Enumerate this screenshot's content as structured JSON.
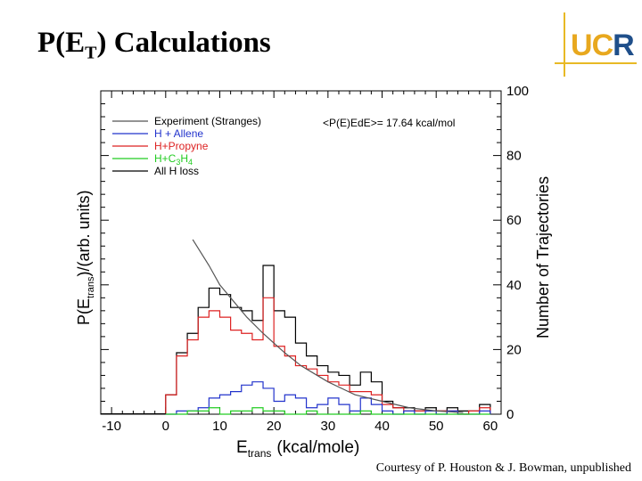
{
  "slide": {
    "title_main": "P(E",
    "title_sub": "T",
    "title_end": ") Calculations",
    "credit": "Courtesy of P. Houston & J. Bowman, unpublished"
  },
  "logo": {
    "u": "U",
    "c": "C",
    "r": "R"
  },
  "colors": {
    "experiment": "#555555",
    "allene": "#2233cc",
    "propyne": "#dd2222",
    "c3h4": "#22cc22",
    "all": "#000000"
  },
  "chart_data": {
    "type": "line",
    "title": "",
    "xlabel": "E",
    "xlabel_sub": "trans",
    "xlabel_units": "(kcal/mole)",
    "ylabel_left_main": "P(E",
    "ylabel_left_sub": "trans",
    "ylabel_left_end": ")/(arb. units)",
    "ylabel_right": "Number of Trajectories",
    "xlim": [
      -12,
      62
    ],
    "ylim": [
      0,
      100
    ],
    "x_ticks": [
      -10,
      0,
      10,
      20,
      30,
      40,
      50,
      60
    ],
    "y_ticks_right": [
      0,
      20,
      40,
      60,
      80,
      100
    ],
    "annotation": "<P(E)EdE>= 17.64 kcal/mol",
    "legend": [
      {
        "label": "Experiment (Stranges)",
        "series": "experiment"
      },
      {
        "label": "H + Allene",
        "series": "allene"
      },
      {
        "label": "H+Propyne",
        "series": "propyne"
      },
      {
        "label_main": "H+C",
        "label_sub1": "3",
        "label_mid": "H",
        "label_sub2": "4",
        "series": "c3h4"
      },
      {
        "label": "All H loss",
        "series": "all"
      }
    ],
    "bin_edges": [
      0,
      2,
      4,
      6,
      8,
      10,
      12,
      14,
      16,
      18,
      20,
      22,
      24,
      26,
      28,
      30,
      32,
      34,
      36,
      38,
      40,
      42,
      44,
      46,
      48,
      50,
      52,
      54,
      56,
      58,
      60
    ],
    "series": [
      {
        "name": "All H loss",
        "key": "all",
        "values": [
          6,
          19,
          25,
          33,
          39,
          37,
          33,
          32,
          29,
          46,
          32,
          30,
          22,
          18,
          15,
          13,
          12,
          9,
          13,
          10,
          4,
          2,
          2,
          1,
          2,
          1,
          2,
          1,
          1,
          3
        ]
      },
      {
        "name": "H+Propyne",
        "key": "propyne",
        "values": [
          6,
          18,
          23,
          30,
          32,
          30,
          26,
          25,
          23,
          36,
          21,
          18,
          15,
          14,
          12,
          10,
          9,
          7,
          7,
          6,
          3,
          2,
          1,
          1,
          1,
          1,
          1,
          0,
          1,
          2
        ]
      },
      {
        "name": "H + Allene",
        "key": "allene",
        "values": [
          0,
          1,
          1,
          2,
          5,
          6,
          7,
          9,
          10,
          8,
          4,
          6,
          5,
          2,
          3,
          5,
          3,
          1,
          5,
          3,
          1,
          0,
          1,
          0,
          1,
          0,
          1,
          0,
          0,
          1
        ]
      },
      {
        "name": "H+C3H4",
        "key": "c3h4",
        "values": [
          0,
          0,
          1,
          1,
          2,
          0,
          1,
          1,
          2,
          1,
          1,
          0,
          0,
          1,
          0,
          0,
          0,
          0,
          1,
          0,
          0,
          0,
          0,
          0,
          0,
          0,
          0,
          0,
          0,
          0
        ]
      }
    ],
    "experiment_curve": {
      "x": [
        5,
        8,
        10,
        12,
        15,
        18,
        20,
        22,
        25,
        28,
        30,
        35,
        40,
        45,
        50,
        55
      ],
      "y": [
        54,
        46,
        40,
        36,
        30,
        25,
        22,
        19,
        15,
        12,
        10,
        6,
        4,
        2,
        1,
        0.5
      ]
    }
  }
}
